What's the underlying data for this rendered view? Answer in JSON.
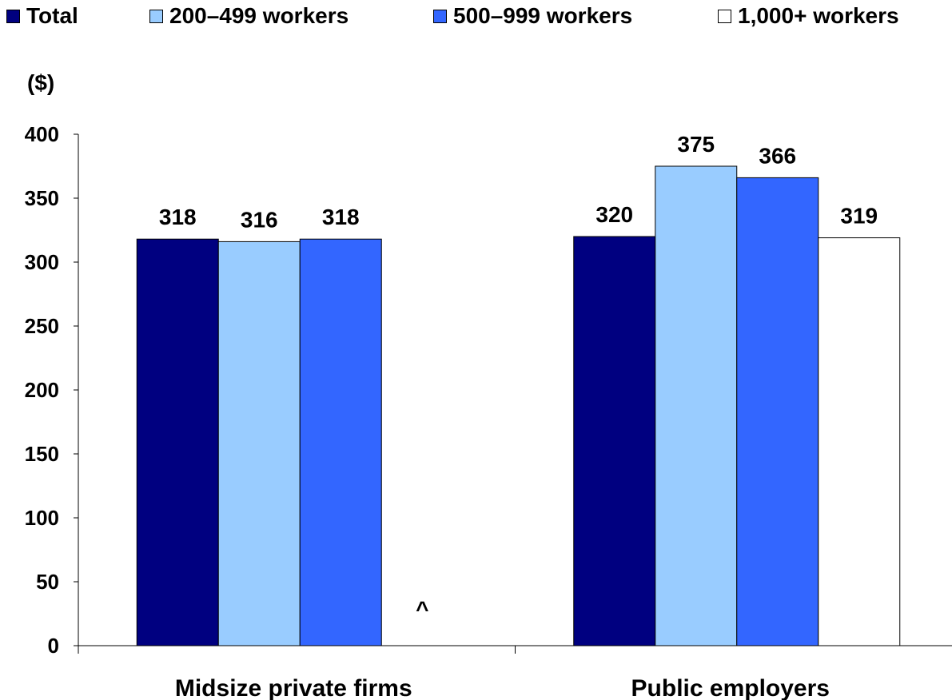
{
  "chart_data": {
    "type": "bar",
    "categories": [
      "Midsize private firms",
      "Public employers"
    ],
    "series": [
      {
        "name": "Total",
        "values": [
          318,
          320
        ],
        "color": "#000080"
      },
      {
        "name": "200–499 workers",
        "values": [
          316,
          375
        ],
        "color": "#99ccff"
      },
      {
        "name": "500–999 workers",
        "values": [
          318,
          366
        ],
        "color": "#3366ff"
      },
      {
        "name": "1,000+ workers",
        "values": [
          null,
          319
        ],
        "color": "#ffffff"
      }
    ],
    "ylabel": "($)",
    "ylim": [
      0,
      400
    ],
    "yticks": [
      "0",
      "50",
      "100",
      "150",
      "200",
      "250",
      "300",
      "350",
      "400"
    ],
    "annotations": [
      {
        "category": "Midsize private firms",
        "series": "1,000+ workers",
        "text": "^"
      }
    ],
    "grid": false,
    "legend": "top"
  }
}
